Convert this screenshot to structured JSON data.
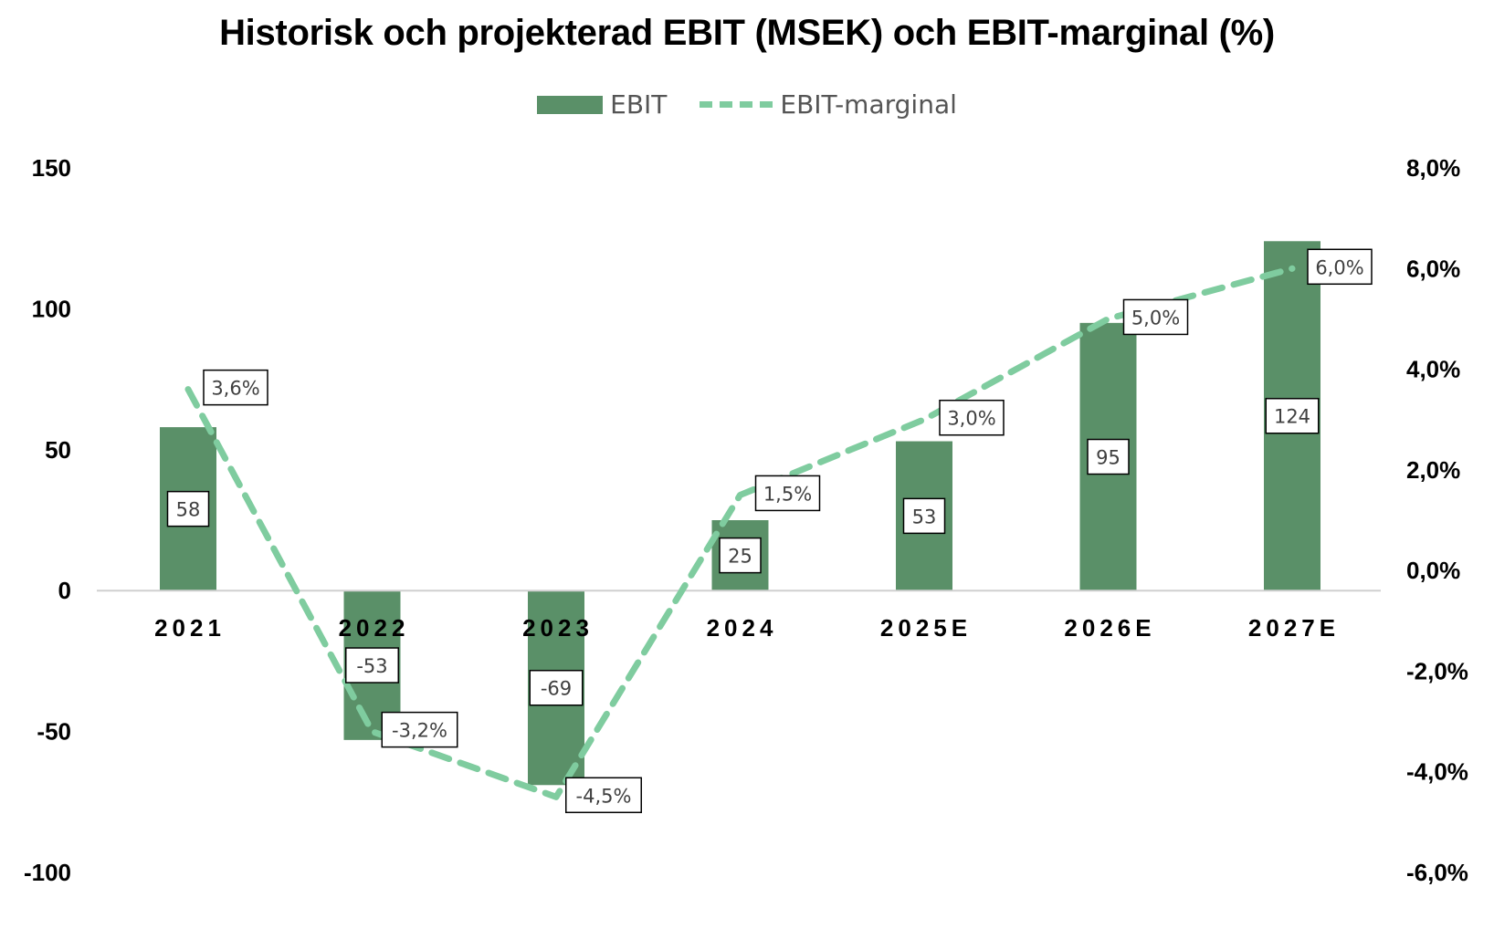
{
  "chart_data": {
    "type": "bar",
    "title": "Historisk och projekterad EBIT (MSEK) och EBIT-marginal  (%)",
    "categories": [
      "2021",
      "2022",
      "2023",
      "2024",
      "2025E",
      "2026E",
      "2027E"
    ],
    "series": [
      {
        "name": "EBIT",
        "type": "bar",
        "axis": "left",
        "color": "#5a9068",
        "values": [
          58,
          -53,
          -69,
          25,
          53,
          95,
          124
        ],
        "labels": [
          "58",
          "-53",
          "-69",
          "25",
          "53",
          "95",
          "124"
        ]
      },
      {
        "name": "EBIT-marginal",
        "type": "line",
        "style": "dashed",
        "axis": "right",
        "color": "#7fcc9f",
        "values": [
          3.6,
          -3.2,
          -4.5,
          1.5,
          3.0,
          5.0,
          6.0
        ],
        "labels": [
          "3,6%",
          "-3,2%",
          "-4,5%",
          "1,5%",
          "3,0%",
          "5,0%",
          "6,0%"
        ]
      }
    ],
    "y_left": {
      "min": -100,
      "max": 150,
      "ticks": [
        "150",
        "100",
        "50",
        "0",
        "-50",
        "-100"
      ]
    },
    "y_right": {
      "min": -6,
      "max": 8,
      "ticks": [
        "8,0%",
        "6,0%",
        "4,0%",
        "2,0%",
        "0,0%",
        "-2,0%",
        "-4,0%",
        "-6,0%"
      ]
    },
    "grid": false,
    "legend": "top-center"
  }
}
